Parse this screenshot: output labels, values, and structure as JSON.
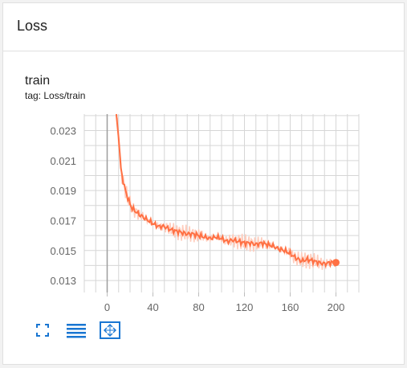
{
  "section": {
    "title": "Loss"
  },
  "card": {
    "title": "train",
    "tag": "tag: Loss/train"
  },
  "toolbar": {
    "buttons": [
      "fullscreen-icon",
      "toggle-log-scale-icon",
      "fit-domain-icon"
    ]
  },
  "colors": {
    "accent": "#1976d2",
    "series_line": "#ff7043",
    "series_raw": "#ffccbc",
    "grid": "#d6d6d6",
    "axis_marker": "#9e9e9e"
  },
  "chart_data": {
    "type": "line",
    "title": "",
    "xlabel": "",
    "ylabel": "",
    "xlim": [
      -20,
      220
    ],
    "ylim": [
      0.0122,
      0.0241
    ],
    "x_ticks": [
      0,
      40,
      80,
      120,
      160,
      200
    ],
    "y_ticks": [
      0.013,
      0.015,
      0.017,
      0.019,
      0.021,
      0.023
    ],
    "x_tick_labels": [
      "0",
      "40",
      "80",
      "120",
      "160",
      "200"
    ],
    "y_tick_labels": [
      "0.013",
      "0.015",
      "0.017",
      "0.019",
      "0.021",
      "0.023"
    ],
    "grid": true,
    "series": [
      {
        "x": [
          8,
          10,
          12,
          14,
          16,
          18,
          20,
          22,
          25,
          28,
          32,
          36,
          40,
          45,
          50,
          55,
          60,
          65,
          70,
          75,
          80,
          85,
          90,
          95,
          100,
          105,
          110,
          115,
          120,
          125,
          130,
          135,
          140,
          145,
          150,
          155,
          160,
          165,
          170,
          175,
          180,
          185,
          190,
          195,
          200
        ],
        "y": [
          0.0241,
          0.0225,
          0.0205,
          0.0196,
          0.019,
          0.0185,
          0.0181,
          0.0178,
          0.0176,
          0.0174,
          0.0172,
          0.017,
          0.0168,
          0.0166,
          0.0166,
          0.0164,
          0.0163,
          0.0162,
          0.0161,
          0.0161,
          0.016,
          0.0159,
          0.0158,
          0.0159,
          0.0158,
          0.0156,
          0.0157,
          0.0156,
          0.0155,
          0.0155,
          0.0154,
          0.0155,
          0.0154,
          0.0153,
          0.0151,
          0.015,
          0.0148,
          0.0145,
          0.0143,
          0.0144,
          0.0143,
          0.0142,
          0.0141,
          0.0142,
          0.0142
        ]
      }
    ]
  }
}
